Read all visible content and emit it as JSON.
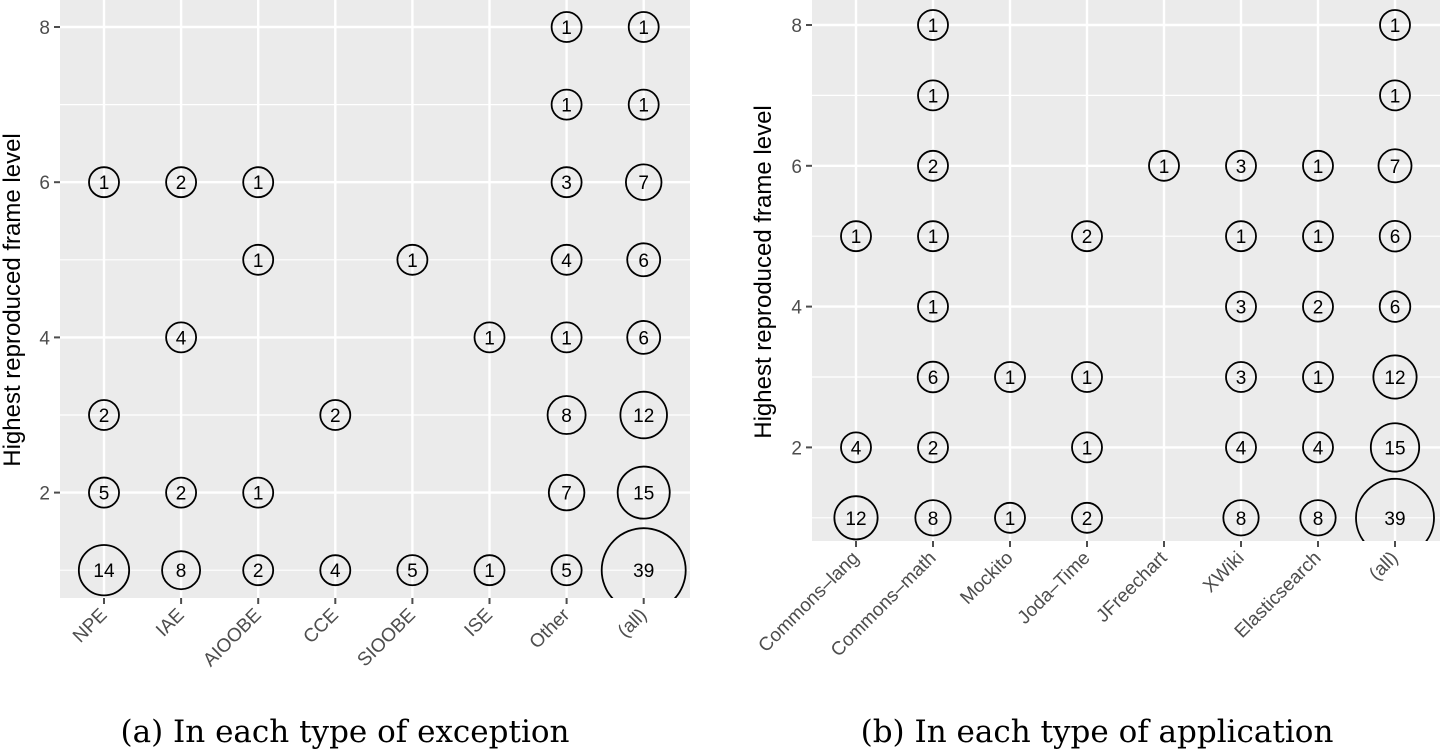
{
  "chart_data": [
    {
      "type": "scatter",
      "caption": "(a) In each type of exception",
      "ylabel": "Highest reproduced frame level",
      "xlabel": "",
      "categories": [
        "NPE",
        "IAE",
        "AIOOBE",
        "CCE",
        "SIOOBE",
        "ISE",
        "Other",
        "(all)"
      ],
      "yticks": [
        2,
        4,
        6,
        8
      ],
      "ylim": [
        0.65,
        8.3
      ],
      "points": [
        {
          "x": "NPE",
          "y": 6,
          "n": 1
        },
        {
          "x": "NPE",
          "y": 3,
          "n": 2
        },
        {
          "x": "NPE",
          "y": 2,
          "n": 5
        },
        {
          "x": "NPE",
          "y": 1,
          "n": 14
        },
        {
          "x": "IAE",
          "y": 6,
          "n": 2
        },
        {
          "x": "IAE",
          "y": 4,
          "n": 4
        },
        {
          "x": "IAE",
          "y": 2,
          "n": 2
        },
        {
          "x": "IAE",
          "y": 1,
          "n": 8
        },
        {
          "x": "AIOOBE",
          "y": 6,
          "n": 1
        },
        {
          "x": "AIOOBE",
          "y": 5,
          "n": 1
        },
        {
          "x": "AIOOBE",
          "y": 2,
          "n": 1
        },
        {
          "x": "AIOOBE",
          "y": 1,
          "n": 2
        },
        {
          "x": "CCE",
          "y": 3,
          "n": 2
        },
        {
          "x": "CCE",
          "y": 1,
          "n": 4
        },
        {
          "x": "SIOOBE",
          "y": 5,
          "n": 1
        },
        {
          "x": "SIOOBE",
          "y": 1,
          "n": 5
        },
        {
          "x": "ISE",
          "y": 4,
          "n": 1
        },
        {
          "x": "ISE",
          "y": 1,
          "n": 1
        },
        {
          "x": "Other",
          "y": 8,
          "n": 1
        },
        {
          "x": "Other",
          "y": 7,
          "n": 1
        },
        {
          "x": "Other",
          "y": 6,
          "n": 3
        },
        {
          "x": "Other",
          "y": 5,
          "n": 4
        },
        {
          "x": "Other",
          "y": 4,
          "n": 1
        },
        {
          "x": "Other",
          "y": 3,
          "n": 8
        },
        {
          "x": "Other",
          "y": 2,
          "n": 7
        },
        {
          "x": "Other",
          "y": 1,
          "n": 5
        },
        {
          "x": "(all)",
          "y": 8,
          "n": 1
        },
        {
          "x": "(all)",
          "y": 7,
          "n": 1
        },
        {
          "x": "(all)",
          "y": 6,
          "n": 7
        },
        {
          "x": "(all)",
          "y": 5,
          "n": 6
        },
        {
          "x": "(all)",
          "y": 4,
          "n": 6
        },
        {
          "x": "(all)",
          "y": 3,
          "n": 12
        },
        {
          "x": "(all)",
          "y": 2,
          "n": 15
        },
        {
          "x": "(all)",
          "y": 1,
          "n": 39
        }
      ]
    },
    {
      "type": "scatter",
      "caption": "(b) In each type of application",
      "ylabel": "Highest reproduced frame level",
      "xlabel": "",
      "categories": [
        "Commons–lang",
        "Commons–math",
        "Mockito",
        "Joda–Time",
        "JFreechart",
        "XWiki",
        "Elasticsearch",
        "(all)"
      ],
      "yticks": [
        2,
        4,
        6,
        8
      ],
      "ylim": [
        0.65,
        8.3
      ],
      "points": [
        {
          "x": "Commons–lang",
          "y": 5,
          "n": 1
        },
        {
          "x": "Commons–lang",
          "y": 2,
          "n": 4
        },
        {
          "x": "Commons–lang",
          "y": 1,
          "n": 12
        },
        {
          "x": "Commons–math",
          "y": 8,
          "n": 1
        },
        {
          "x": "Commons–math",
          "y": 7,
          "n": 1
        },
        {
          "x": "Commons–math",
          "y": 6,
          "n": 2
        },
        {
          "x": "Commons–math",
          "y": 5,
          "n": 1
        },
        {
          "x": "Commons–math",
          "y": 4,
          "n": 1
        },
        {
          "x": "Commons–math",
          "y": 3,
          "n": 6
        },
        {
          "x": "Commons–math",
          "y": 2,
          "n": 2
        },
        {
          "x": "Commons–math",
          "y": 1,
          "n": 8
        },
        {
          "x": "Mockito",
          "y": 3,
          "n": 1
        },
        {
          "x": "Mockito",
          "y": 1,
          "n": 1
        },
        {
          "x": "Joda–Time",
          "y": 5,
          "n": 2
        },
        {
          "x": "Joda–Time",
          "y": 3,
          "n": 1
        },
        {
          "x": "Joda–Time",
          "y": 2,
          "n": 1
        },
        {
          "x": "Joda–Time",
          "y": 1,
          "n": 2
        },
        {
          "x": "JFreechart",
          "y": 6,
          "n": 1
        },
        {
          "x": "XWiki",
          "y": 6,
          "n": 3
        },
        {
          "x": "XWiki",
          "y": 5,
          "n": 1
        },
        {
          "x": "XWiki",
          "y": 4,
          "n": 3
        },
        {
          "x": "XWiki",
          "y": 3,
          "n": 3
        },
        {
          "x": "XWiki",
          "y": 2,
          "n": 4
        },
        {
          "x": "XWiki",
          "y": 1,
          "n": 8
        },
        {
          "x": "Elasticsearch",
          "y": 6,
          "n": 1
        },
        {
          "x": "Elasticsearch",
          "y": 5,
          "n": 1
        },
        {
          "x": "Elasticsearch",
          "y": 4,
          "n": 2
        },
        {
          "x": "Elasticsearch",
          "y": 3,
          "n": 1
        },
        {
          "x": "Elasticsearch",
          "y": 2,
          "n": 4
        },
        {
          "x": "Elasticsearch",
          "y": 1,
          "n": 8
        },
        {
          "x": "(all)",
          "y": 8,
          "n": 1
        },
        {
          "x": "(all)",
          "y": 7,
          "n": 1
        },
        {
          "x": "(all)",
          "y": 6,
          "n": 7
        },
        {
          "x": "(all)",
          "y": 5,
          "n": 6
        },
        {
          "x": "(all)",
          "y": 4,
          "n": 6
        },
        {
          "x": "(all)",
          "y": 3,
          "n": 12
        },
        {
          "x": "(all)",
          "y": 2,
          "n": 15
        },
        {
          "x": "(all)",
          "y": 1,
          "n": 39
        }
      ]
    }
  ],
  "style": {
    "panel_bg": "#ebebeb",
    "grid_color": "#ffffff",
    "tick_color": "#4d4d4d",
    "circle_stroke": "#000000"
  }
}
